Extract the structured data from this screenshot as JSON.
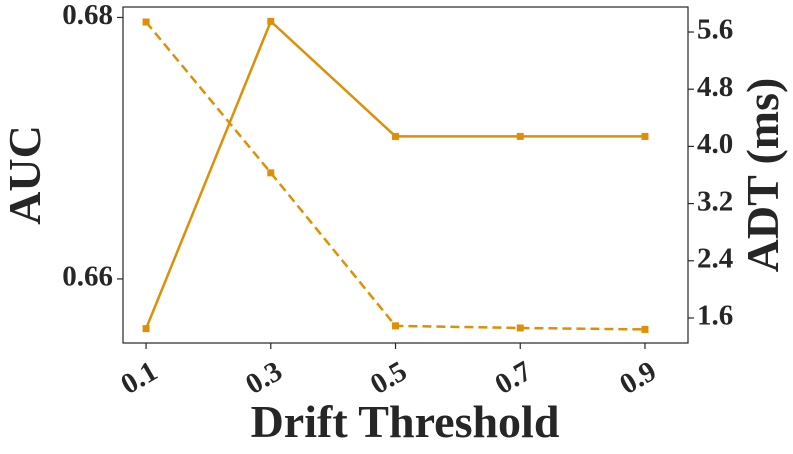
{
  "chart_data": {
    "type": "line",
    "x_label": "Drift Threshold",
    "y_label": "AUC",
    "y2_label": "ADT (ms)",
    "x": [
      0.1,
      0.3,
      0.5,
      0.7,
      0.9
    ],
    "xlim": [
      0.063,
      0.969
    ],
    "xticks": [
      0.1,
      0.3,
      0.5,
      0.7,
      0.9
    ],
    "ylim": [
      0.6551,
      0.6808
    ],
    "yticks": [
      0.66,
      0.68
    ],
    "y2lim": [
      1.25,
      5.95
    ],
    "y2ticks": [
      1.6,
      2.4,
      3.2,
      {
        "value": 4,
        "label": "4.0"
      },
      4.8,
      5.6
    ],
    "series": [
      {
        "color": "#de8f05",
        "linestyle": "solid",
        "axis": "y",
        "values": [
          0.6562,
          0.6797,
          0.6709,
          0.6709,
          0.6709
        ]
      },
      {
        "color": "#de8f05",
        "linestyle": "dashed",
        "axis": "y2",
        "values": [
          5.74,
          3.63,
          1.49,
          1.46,
          1.44
        ]
      }
    ]
  }
}
